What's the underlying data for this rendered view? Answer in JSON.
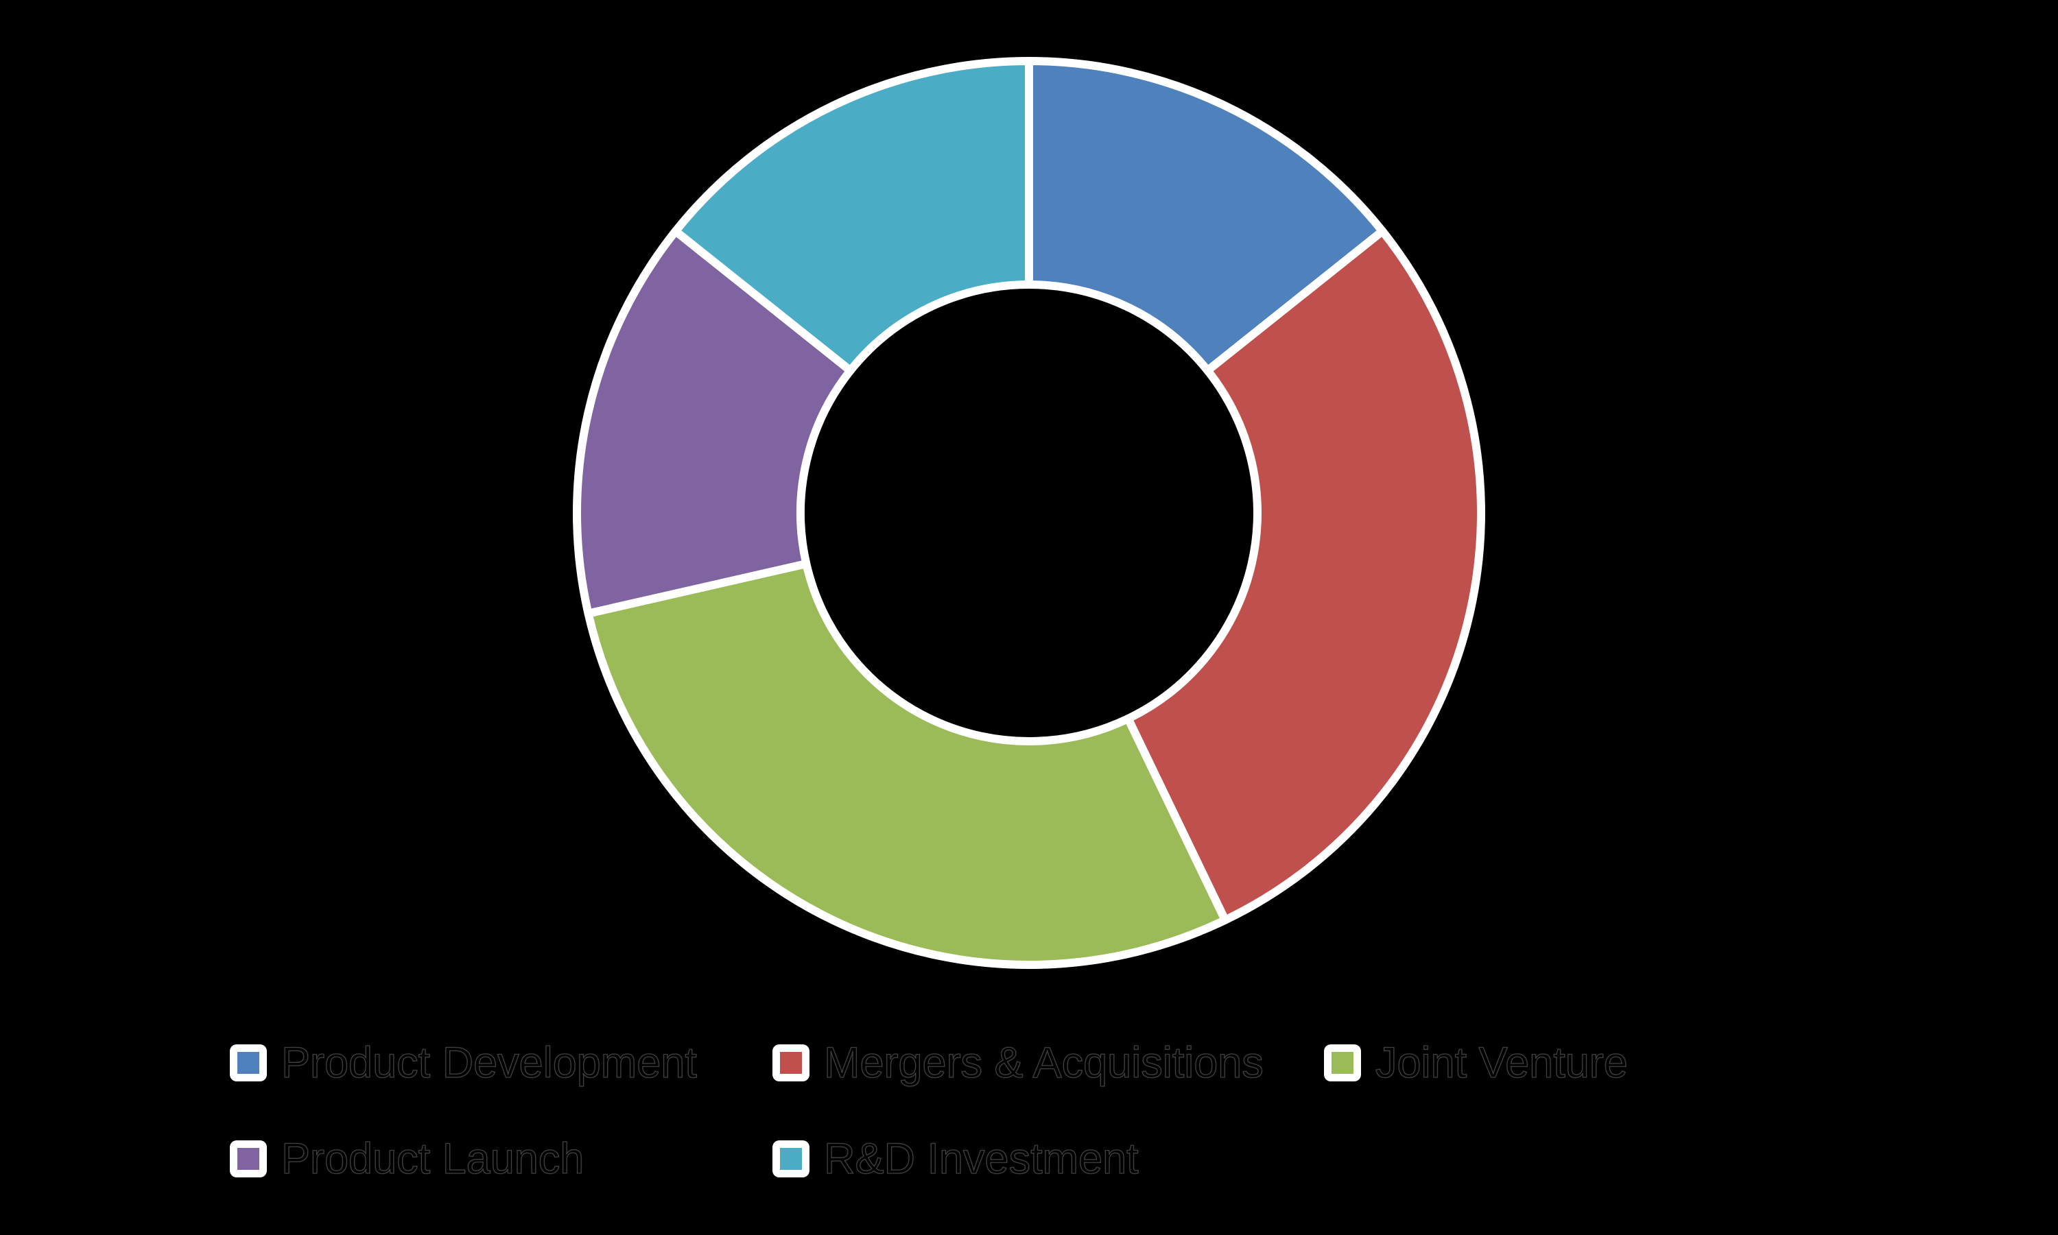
{
  "page": {
    "background_color": "#000000"
  },
  "chart_data": {
    "type": "pie",
    "subtype": "donut",
    "title": "",
    "start_angle_deg": 0,
    "direction": "clockwise",
    "inner_radius_ratio": 0.5,
    "slice_border_color": "#FFFFFF",
    "data_labels_shown": false,
    "legend_position": "bottom-left",
    "legend_rows": 2,
    "segments": [
      {
        "label": "Product Development",
        "value_pct": 14.3,
        "color": "#4F81BD"
      },
      {
        "label": "Mergers & Acquisitions",
        "value_pct": 28.6,
        "color": "#C0504D"
      },
      {
        "label": "Joint Venture",
        "value_pct": 28.6,
        "color": "#9BBB59"
      },
      {
        "label": "Product Launch",
        "value_pct": 14.3,
        "color": "#8064A2"
      },
      {
        "label": "R&D Investment",
        "value_pct": 14.3,
        "color": "#4BACC6"
      }
    ]
  }
}
